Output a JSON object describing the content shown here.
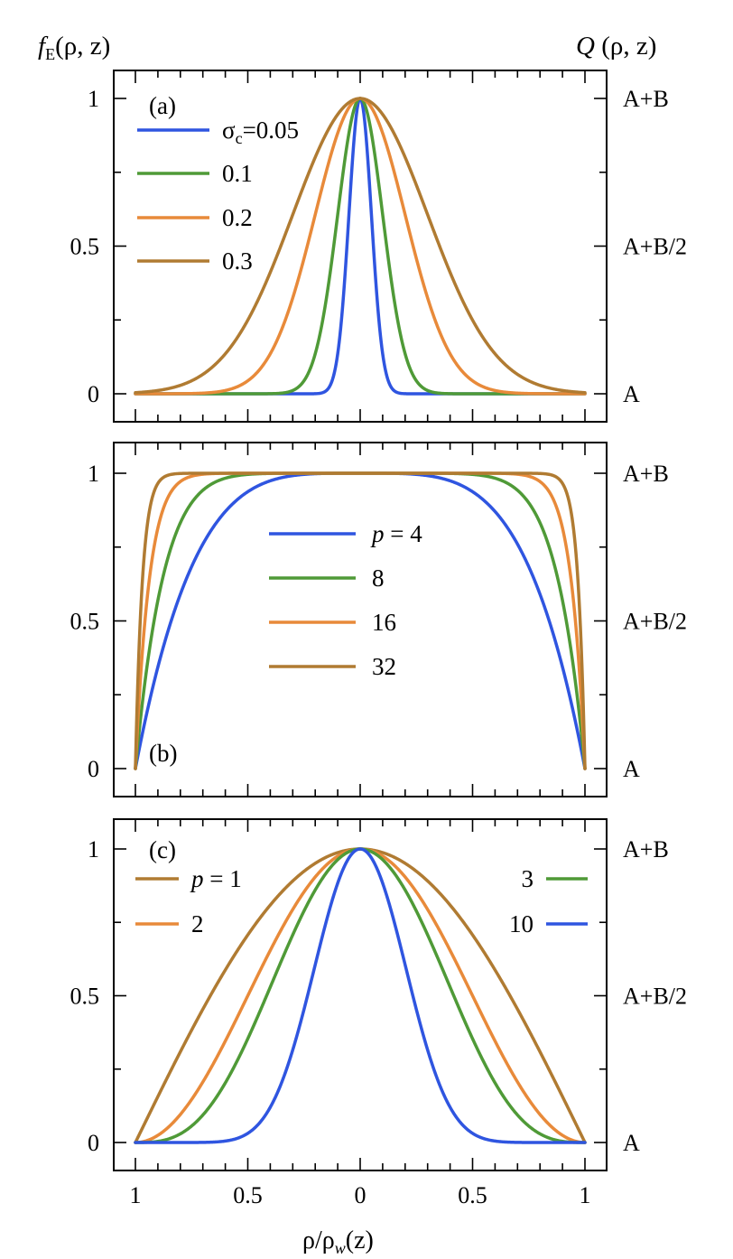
{
  "colors": {
    "blue": "#2f55e0",
    "green": "#4f9a37",
    "orange": "#e88a3a",
    "brown": "#b07b32"
  },
  "y_label_left": {
    "italic": "f",
    "sub": "E",
    "rest": "(ρ, z)"
  },
  "y_label_right": {
    "italic": "Q",
    "rest": " (ρ, z)"
  },
  "x_label": {
    "pre": "ρ/ρ",
    "sub": "w",
    "post": "(z)"
  },
  "chart_data": [
    {
      "type": "line",
      "panel_label": "(a)",
      "family": "gaussian",
      "x_ticks": [
        "1",
        "0.5",
        "0",
        "0.5",
        "1"
      ],
      "y_ticks": [
        "0",
        "0.5",
        "1"
      ],
      "y_ticks_right": [
        "A",
        "A+B/2",
        "A+B"
      ],
      "xlim": [
        -1,
        1
      ],
      "ylim": [
        0,
        1
      ],
      "legend_header": {
        "symbol": "σ",
        "sub": "c",
        "rest": "=0.05"
      },
      "series": [
        {
          "name": "σc=0.05",
          "param": 0.05,
          "color": "blue"
        },
        {
          "name": "0.1",
          "param": 0.1,
          "color": "green"
        },
        {
          "name": "0.2",
          "param": 0.2,
          "color": "orange"
        },
        {
          "name": "0.3",
          "param": 0.3,
          "color": "brown"
        }
      ],
      "legend_labels": [
        "",
        "0.1",
        "0.2",
        "0.3"
      ]
    },
    {
      "type": "line",
      "panel_label": "(b)",
      "family": "flat-top 1-|x|^p",
      "x_ticks": [
        "1",
        "0.5",
        "0",
        "0.5",
        "1"
      ],
      "y_ticks": [
        "0",
        "0.5",
        "1"
      ],
      "y_ticks_right": [
        "A",
        "A+B/2",
        "A+B"
      ],
      "xlim": [
        -1,
        1
      ],
      "ylim": [
        0,
        1
      ],
      "legend_header": {
        "italic": "p",
        "rest": " = 4"
      },
      "series": [
        {
          "name": "p = 4",
          "param": 4,
          "color": "blue"
        },
        {
          "name": "8",
          "param": 8,
          "color": "green"
        },
        {
          "name": "16",
          "param": 16,
          "color": "orange"
        },
        {
          "name": "32",
          "param": 32,
          "color": "brown"
        }
      ],
      "legend_labels": [
        "",
        "8",
        "16",
        "32"
      ]
    },
    {
      "type": "line",
      "panel_label": "(c)",
      "family": "cos^p(πx/2)",
      "x_ticks": [
        "1",
        "0.5",
        "0",
        "0.5",
        "1"
      ],
      "y_ticks": [
        "0",
        "0.5",
        "1"
      ],
      "y_ticks_right": [
        "A",
        "A+B/2",
        "A+B"
      ],
      "xlim": [
        -1,
        1
      ],
      "ylim": [
        0,
        1
      ],
      "legend_header": {
        "italic": "p",
        "rest": " = 1"
      },
      "series": [
        {
          "name": "p = 1",
          "param": 1,
          "color": "brown"
        },
        {
          "name": "2",
          "param": 2,
          "color": "orange"
        },
        {
          "name": "3",
          "param": 3,
          "color": "green"
        },
        {
          "name": "10",
          "param": 10,
          "color": "blue"
        }
      ],
      "legend_labels": [
        "",
        "2",
        "3",
        "10"
      ]
    }
  ]
}
